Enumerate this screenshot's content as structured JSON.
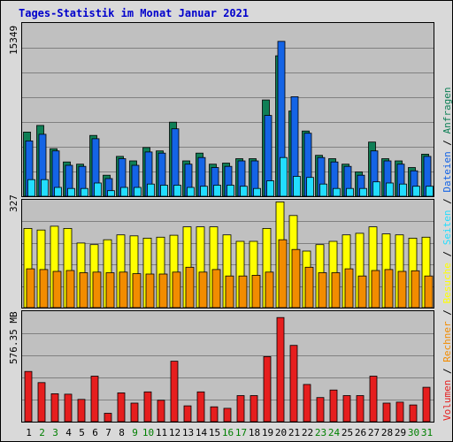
{
  "title": "Tages-Statistik im Monat Januar 2021",
  "colors": {
    "background": "#d9d9d9",
    "plot_bg": "#c0c0c0",
    "grid": "#808080",
    "title": "#0000cc",
    "anfragen": "#0f7f56",
    "dateien": "#1464e6",
    "seiten": "#22ddff",
    "besuche": "#ffff00",
    "rechner": "#f28c00",
    "volumen": "#e61e1e",
    "weekend": "#008000",
    "weekday": "#000000"
  },
  "chart_data": {
    "type": "bar",
    "title": "Tages-Statistik im Monat Januar 2021",
    "categories": [
      "1",
      "2",
      "3",
      "4",
      "5",
      "6",
      "7",
      "8",
      "9",
      "10",
      "11",
      "12",
      "13",
      "14",
      "15",
      "16",
      "17",
      "18",
      "19",
      "20",
      "21",
      "22",
      "23",
      "24",
      "25",
      "26",
      "27",
      "28",
      "29",
      "30",
      "31"
    ],
    "weekend_days": [
      "2",
      "3",
      "9",
      "10",
      "16",
      "17",
      "23",
      "24",
      "30",
      "31"
    ],
    "panels": [
      {
        "id": "top",
        "max_label": "15349",
        "ymax": 15349,
        "grid": true,
        "series": [
          {
            "name": "Anfragen",
            "values": [
              5800,
              6400,
              4300,
              3100,
              2900,
              5500,
              1900,
              3600,
              3200,
              4400,
              4100,
              6700,
              3200,
              3900,
              2900,
              3000,
              3400,
              3400,
              8700,
              12700,
              7700,
              5900,
              3700,
              3400,
              2900,
              2200,
              4900,
              3400,
              3200,
              2600,
              3800
            ]
          },
          {
            "name": "Dateien",
            "values": [
              5000,
              5600,
              4100,
              2800,
              2700,
              5200,
              1600,
              3400,
              2800,
              4000,
              3900,
              6100,
              2900,
              3500,
              2600,
              2700,
              3200,
              3200,
              7300,
              14000,
              9000,
              5700,
              3500,
              3100,
              2700,
              1900,
              4100,
              3200,
              2900,
              2300,
              3600
            ]
          },
          {
            "name": "Seiten",
            "values": [
              1500,
              1500,
              800,
              700,
              700,
              1200,
              500,
              800,
              800,
              1100,
              1000,
              1000,
              800,
              900,
              1000,
              1000,
              900,
              700,
              1400,
              3500,
              1800,
              1700,
              1100,
              700,
              700,
              700,
              1300,
              1200,
              1100,
              900,
              900
            ]
          }
        ]
      },
      {
        "id": "middle",
        "max_label": "327",
        "ymax": 327,
        "grid": true,
        "series": [
          {
            "name": "Besuche",
            "values": [
              245,
              240,
              252,
              245,
              200,
              195,
              210,
              225,
              222,
              215,
              218,
              224,
              250,
              250,
              250,
              225,
              205,
              205,
              245,
              327,
              285,
              175,
              195,
              205,
              225,
              230,
              250,
              228,
              225,
              215,
              218
            ]
          },
          {
            "name": "Rechner",
            "values": [
              120,
              118,
              112,
              115,
              108,
              110,
              108,
              110,
              105,
              104,
              104,
              110,
              125,
              110,
              118,
              98,
              98,
              100,
              110,
              210,
              180,
              125,
              108,
              108,
              120,
              98,
              115,
              118,
              112,
              114,
              98
            ]
          }
        ]
      },
      {
        "id": "bottom",
        "max_label": "576.35 MB",
        "ymax": 576.35,
        "grid": true,
        "series": [
          {
            "name": "Volumen",
            "values": [
              270,
              210,
              150,
              148,
              120,
              245,
              45,
              155,
              100,
              160,
              115,
              325,
              85,
              160,
              80,
              72,
              140,
              140,
              350,
              560,
              410,
              200,
              130,
              170,
              140,
              140,
              245,
              100,
              105,
              90,
              185
            ]
          }
        ]
      }
    ],
    "right_legend": [
      {
        "label": "Volumen",
        "color_key": "volumen"
      },
      {
        "label": "Rechner",
        "color_key": "rechner"
      },
      {
        "label": "Besuche",
        "color_key": "besuche"
      },
      {
        "label": "Seiten",
        "color_key": "seiten"
      },
      {
        "label": "Dateien",
        "color_key": "dateien"
      },
      {
        "label": "Anfragen",
        "color_key": "anfragen"
      }
    ],
    "right_legend_separator": " / "
  }
}
